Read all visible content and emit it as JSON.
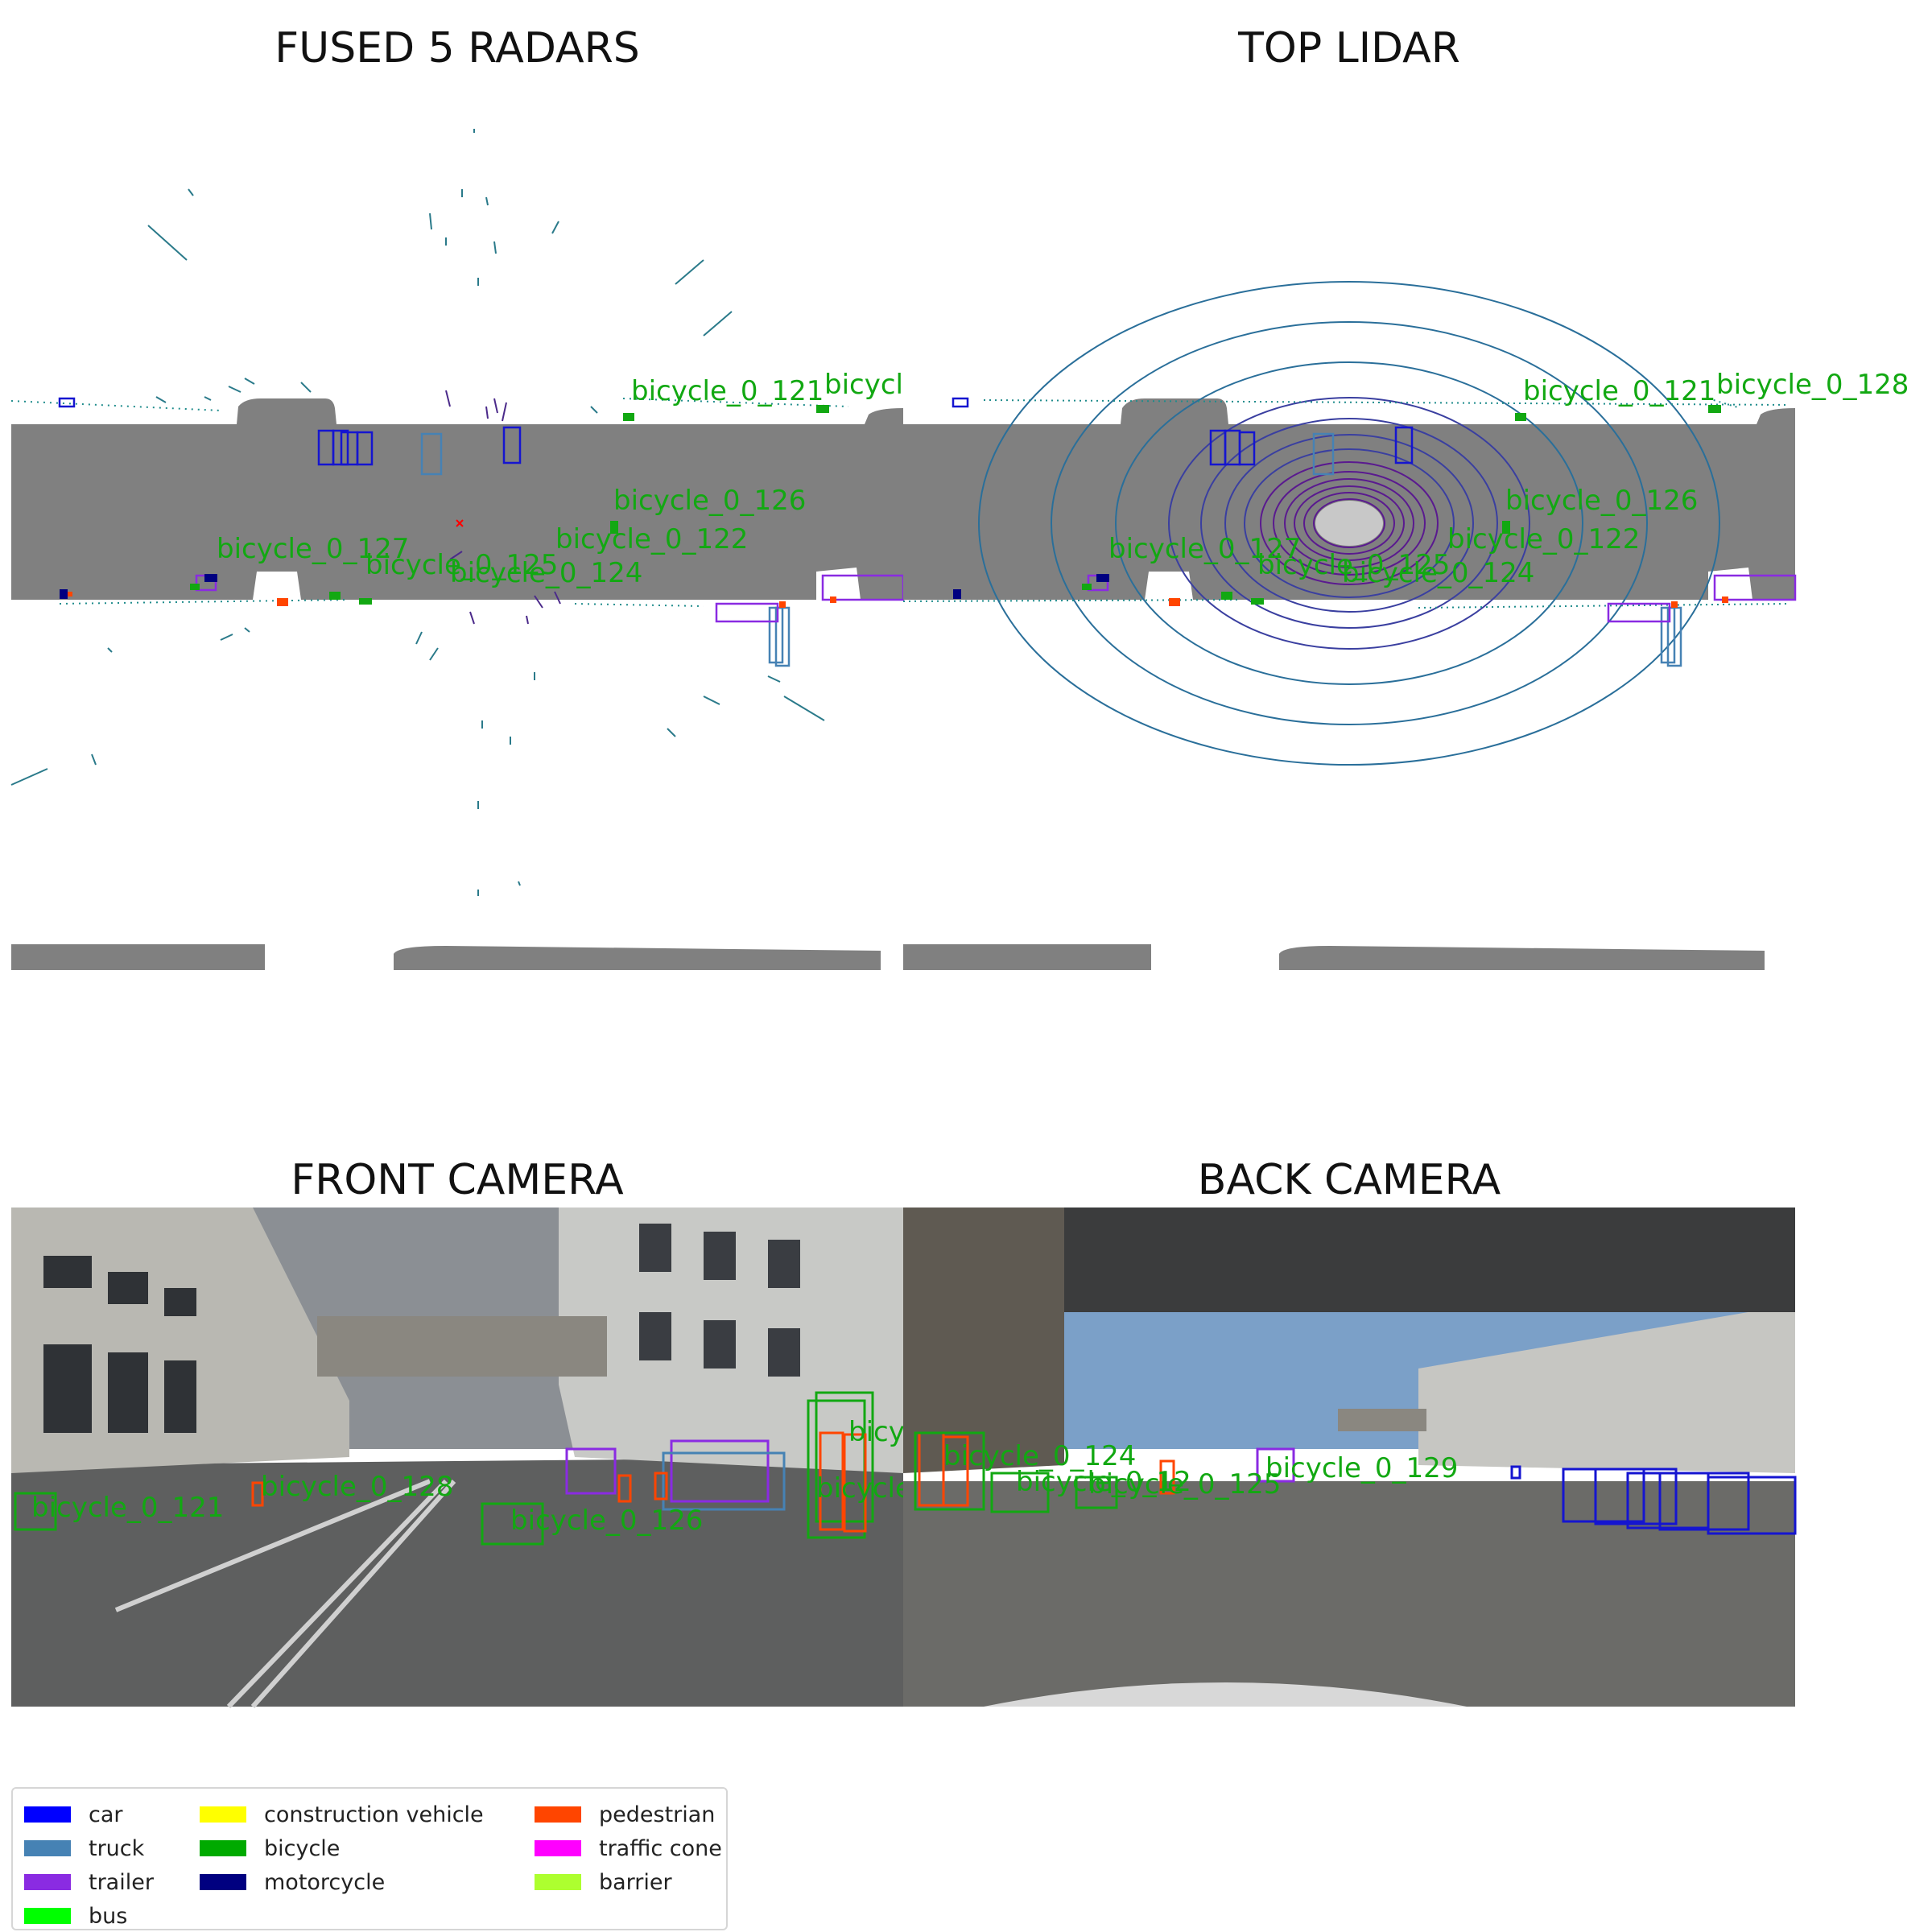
{
  "panels": {
    "radar_title": "FUSED 5 RADARS",
    "lidar_title": "TOP LIDAR",
    "front_title": "FRONT CAMERA",
    "back_title": "BACK CAMERA"
  },
  "radar_labels": [
    "bicycle_0_121",
    "bicycl",
    "bicycle_0_126",
    "bicycle_0_122",
    "bicycle_0_127",
    "bicycle_0_125",
    "bicycle_0_124"
  ],
  "lidar_labels": [
    "bicycle_0_121",
    "bicycle_0_128",
    "bicycle_0_126",
    "bicycle_0_122",
    "bicycle_0_127",
    "bicycle_0_125",
    "bicycle_0_124"
  ],
  "front_labels": [
    "bicycle_0_121",
    "bicycle_0_128",
    "bicycle_0_126",
    "bicy",
    "bicycle"
  ],
  "back_labels": [
    "bicycle_0_124",
    "bicycle_0_12",
    "bicycle_0_125",
    "bicycle_0_129"
  ],
  "legend": [
    {
      "label": "car",
      "color": "#0000ff"
    },
    {
      "label": "truck",
      "color": "#4682b4"
    },
    {
      "label": "trailer",
      "color": "#8a2be2"
    },
    {
      "label": "bus",
      "color": "#00ff00"
    },
    {
      "label": "construction vehicle",
      "color": "#ffff00"
    },
    {
      "label": "bicycle",
      "color": "#00aa00"
    },
    {
      "label": "motorcycle",
      "color": "#000080"
    },
    {
      "label": "pedestrian",
      "color": "#ff4500"
    },
    {
      "label": "traffic cone",
      "color": "#ff00ff"
    },
    {
      "label": "barrier",
      "color": "#adff2f"
    }
  ]
}
